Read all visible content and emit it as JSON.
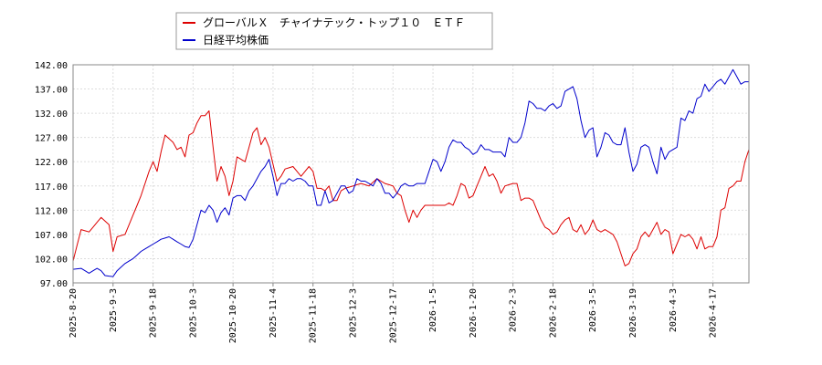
{
  "chart_data": {
    "type": "line",
    "grid": true,
    "legend_placement": "top-left",
    "ylim": [
      97.0,
      142.0
    ],
    "y_ticks": [
      "97.00",
      "102.00",
      "107.00",
      "112.00",
      "117.00",
      "122.00",
      "127.00",
      "132.00",
      "137.00",
      "142.00"
    ],
    "x_ticks": [
      "2025-8-20",
      "2025-9-3",
      "2025-9-18",
      "2025-10-3",
      "2025-10-20",
      "2025-11-4",
      "2025-11-18",
      "2025-12-3",
      "2025-12-17",
      "2026-1-5",
      "2026-1-20",
      "2026-2-3",
      "2026-2-18",
      "2026-3-5",
      "2026-3-19",
      "2026-4-3",
      "2026-4-17"
    ],
    "tick_index": [
      0,
      10,
      20,
      30,
      40,
      50,
      60,
      70,
      80,
      90,
      100,
      110,
      120,
      130,
      140,
      150,
      160
    ],
    "n_points": 170,
    "series": [
      {
        "name": "グローバルＸ　チャイナテック・トップ１０　ＥＴＦ",
        "color": "#dd0000",
        "anchors": [
          [
            0,
            101.5
          ],
          [
            2,
            108
          ],
          [
            4,
            107.5
          ],
          [
            7,
            110.5
          ],
          [
            9,
            109
          ],
          [
            10,
            103.5
          ],
          [
            11,
            106.5
          ],
          [
            13,
            107
          ],
          [
            14,
            109
          ],
          [
            17,
            115
          ],
          [
            19,
            120
          ],
          [
            20,
            122
          ],
          [
            21,
            120
          ],
          [
            22,
            124
          ],
          [
            23,
            127.5
          ],
          [
            25,
            126
          ],
          [
            26,
            124.5
          ],
          [
            27,
            125
          ],
          [
            28,
            123
          ],
          [
            29,
            127.5
          ],
          [
            30,
            128
          ],
          [
            31,
            130
          ],
          [
            32,
            131.5
          ],
          [
            33,
            131.5
          ],
          [
            34,
            132.5
          ],
          [
            35,
            125
          ],
          [
            36,
            118
          ],
          [
            37,
            121
          ],
          [
            38,
            119
          ],
          [
            39,
            115
          ],
          [
            40,
            118
          ],
          [
            41,
            123
          ],
          [
            43,
            122
          ],
          [
            45,
            128
          ],
          [
            46,
            129
          ],
          [
            47,
            125.5
          ],
          [
            48,
            127
          ],
          [
            49,
            125
          ],
          [
            50,
            121.5
          ],
          [
            51,
            118
          ],
          [
            52,
            119
          ],
          [
            53,
            120.5
          ],
          [
            55,
            121
          ],
          [
            57,
            119
          ],
          [
            59,
            121
          ],
          [
            60,
            120
          ],
          [
            61,
            116.5
          ],
          [
            62,
            116.5
          ],
          [
            63,
            116
          ],
          [
            64,
            117
          ],
          [
            65,
            114
          ],
          [
            66,
            114
          ],
          [
            67,
            116
          ],
          [
            68,
            116.5
          ],
          [
            70,
            117
          ],
          [
            72,
            117.5
          ],
          [
            74,
            117
          ],
          [
            76,
            118.5
          ],
          [
            78,
            117.5
          ],
          [
            80,
            117
          ],
          [
            81,
            115.5
          ],
          [
            82,
            115
          ],
          [
            83,
            112
          ],
          [
            84,
            109.5
          ],
          [
            85,
            112
          ],
          [
            86,
            110.5
          ],
          [
            87,
            112
          ],
          [
            88,
            113
          ],
          [
            90,
            113
          ],
          [
            92,
            113
          ],
          [
            93,
            113
          ],
          [
            94,
            113.5
          ],
          [
            95,
            113
          ],
          [
            96,
            115
          ],
          [
            97,
            117.5
          ],
          [
            98,
            117
          ],
          [
            99,
            114.5
          ],
          [
            100,
            115
          ],
          [
            101,
            117
          ],
          [
            102,
            119
          ],
          [
            103,
            121
          ],
          [
            104,
            119
          ],
          [
            105,
            119.5
          ],
          [
            106,
            118
          ],
          [
            107,
            115.5
          ],
          [
            108,
            117
          ],
          [
            110,
            117.5
          ],
          [
            111,
            117.5
          ],
          [
            112,
            114
          ],
          [
            113,
            114.5
          ],
          [
            114,
            114.5
          ],
          [
            115,
            114
          ],
          [
            116,
            112
          ],
          [
            117,
            110
          ],
          [
            118,
            108.5
          ],
          [
            119,
            108
          ],
          [
            120,
            107
          ],
          [
            121,
            107.5
          ],
          [
            122,
            109
          ],
          [
            123,
            110
          ],
          [
            124,
            110.5
          ],
          [
            125,
            108
          ],
          [
            126,
            107.5
          ],
          [
            127,
            109
          ],
          [
            128,
            107
          ],
          [
            129,
            108
          ],
          [
            130,
            110
          ],
          [
            131,
            108
          ],
          [
            132,
            107.5
          ],
          [
            133,
            108
          ],
          [
            134,
            107.5
          ],
          [
            135,
            107
          ],
          [
            136,
            105.5
          ],
          [
            137,
            103
          ],
          [
            138,
            100.5
          ],
          [
            139,
            101
          ],
          [
            140,
            103
          ],
          [
            141,
            104
          ],
          [
            142,
            106.5
          ],
          [
            143,
            107.5
          ],
          [
            144,
            106.5
          ],
          [
            145,
            108
          ],
          [
            146,
            109.5
          ],
          [
            147,
            107
          ],
          [
            148,
            108
          ],
          [
            149,
            107.5
          ],
          [
            150,
            103
          ],
          [
            151,
            105
          ],
          [
            152,
            107
          ],
          [
            153,
            106.5
          ],
          [
            154,
            107
          ],
          [
            155,
            106
          ],
          [
            156,
            104
          ],
          [
            157,
            106.5
          ],
          [
            158,
            104
          ],
          [
            159,
            104.5
          ],
          [
            160,
            104.5
          ],
          [
            161,
            106.5
          ],
          [
            162,
            112
          ],
          [
            163,
            112.5
          ],
          [
            164,
            116.5
          ],
          [
            165,
            117
          ],
          [
            166,
            118
          ],
          [
            167,
            118
          ],
          [
            168,
            122
          ],
          [
            169,
            124.5
          ]
        ]
      },
      {
        "name": "日経平均株価",
        "color": "#0000cc",
        "anchors": [
          [
            0,
            99.8
          ],
          [
            2,
            100
          ],
          [
            4,
            99
          ],
          [
            6,
            100
          ],
          [
            7,
            99.5
          ],
          [
            8,
            98.5
          ],
          [
            10,
            98.3
          ],
          [
            11,
            99.5
          ],
          [
            13,
            101
          ],
          [
            14,
            101.5
          ],
          [
            15,
            102
          ],
          [
            17,
            103.5
          ],
          [
            19,
            104.5
          ],
          [
            20,
            105
          ],
          [
            22,
            106
          ],
          [
            24,
            106.5
          ],
          [
            26,
            105.5
          ],
          [
            28,
            104.5
          ],
          [
            29,
            104.3
          ],
          [
            30,
            106
          ],
          [
            31,
            109
          ],
          [
            32,
            112
          ],
          [
            33,
            111.5
          ],
          [
            34,
            113
          ],
          [
            35,
            112
          ],
          [
            36,
            109.5
          ],
          [
            37,
            111.5
          ],
          [
            38,
            112.5
          ],
          [
            39,
            111
          ],
          [
            40,
            114.5
          ],
          [
            41,
            115
          ],
          [
            42,
            115
          ],
          [
            43,
            114
          ],
          [
            44,
            116
          ],
          [
            45,
            117
          ],
          [
            46,
            118.5
          ],
          [
            47,
            120
          ],
          [
            48,
            121
          ],
          [
            49,
            122.5
          ],
          [
            50,
            119
          ],
          [
            51,
            115
          ],
          [
            52,
            117.5
          ],
          [
            53,
            117.5
          ],
          [
            54,
            118.5
          ],
          [
            55,
            118
          ],
          [
            56,
            118.5
          ],
          [
            57,
            118.5
          ],
          [
            58,
            118
          ],
          [
            59,
            117
          ],
          [
            60,
            117
          ],
          [
            61,
            113
          ],
          [
            62,
            113
          ],
          [
            63,
            116
          ],
          [
            64,
            113.5
          ],
          [
            65,
            114
          ],
          [
            66,
            115.5
          ],
          [
            67,
            117
          ],
          [
            68,
            117
          ],
          [
            69,
            115.5
          ],
          [
            70,
            116
          ],
          [
            71,
            118.5
          ],
          [
            72,
            118
          ],
          [
            73,
            118
          ],
          [
            74,
            117.5
          ],
          [
            75,
            117
          ],
          [
            76,
            118.5
          ],
          [
            77,
            117.5
          ],
          [
            78,
            115.5
          ],
          [
            79,
            115.5
          ],
          [
            80,
            114.5
          ],
          [
            81,
            115.5
          ],
          [
            82,
            117
          ],
          [
            83,
            117.5
          ],
          [
            84,
            117
          ],
          [
            85,
            117
          ],
          [
            86,
            117.5
          ],
          [
            87,
            117.5
          ],
          [
            88,
            117.5
          ],
          [
            89,
            120
          ],
          [
            90,
            122.5
          ],
          [
            91,
            122
          ],
          [
            92,
            120
          ],
          [
            93,
            122
          ],
          [
            94,
            125
          ],
          [
            95,
            126.5
          ],
          [
            96,
            126
          ],
          [
            97,
            126
          ],
          [
            98,
            125
          ],
          [
            99,
            124.5
          ],
          [
            100,
            123.5
          ],
          [
            101,
            124
          ],
          [
            102,
            125.5
          ],
          [
            103,
            124.5
          ],
          [
            104,
            124.5
          ],
          [
            105,
            124
          ],
          [
            106,
            124
          ],
          [
            107,
            124
          ],
          [
            108,
            123
          ],
          [
            109,
            127
          ],
          [
            110,
            126
          ],
          [
            111,
            126
          ],
          [
            112,
            127
          ],
          [
            113,
            130
          ],
          [
            114,
            134.5
          ],
          [
            115,
            134
          ],
          [
            116,
            133
          ],
          [
            117,
            133
          ],
          [
            118,
            132.5
          ],
          [
            119,
            133.5
          ],
          [
            120,
            134
          ],
          [
            121,
            133
          ],
          [
            122,
            133.5
          ],
          [
            123,
            136.5
          ],
          [
            124,
            137
          ],
          [
            125,
            137.5
          ],
          [
            126,
            135
          ],
          [
            127,
            130.5
          ],
          [
            128,
            127
          ],
          [
            129,
            128.5
          ],
          [
            130,
            129
          ],
          [
            131,
            123
          ],
          [
            132,
            125
          ],
          [
            133,
            128
          ],
          [
            134,
            127.5
          ],
          [
            135,
            126
          ],
          [
            136,
            125.5
          ],
          [
            137,
            125.5
          ],
          [
            138,
            129
          ],
          [
            139,
            124
          ],
          [
            140,
            120
          ],
          [
            141,
            121.5
          ],
          [
            142,
            125
          ],
          [
            143,
            125.5
          ],
          [
            144,
            125
          ],
          [
            145,
            122
          ],
          [
            146,
            119.5
          ],
          [
            147,
            125
          ],
          [
            148,
            122.5
          ],
          [
            149,
            124
          ],
          [
            150,
            124.5
          ],
          [
            151,
            125
          ],
          [
            152,
            131
          ],
          [
            153,
            130.5
          ],
          [
            154,
            132.5
          ],
          [
            155,
            132
          ],
          [
            156,
            135
          ],
          [
            157,
            135.5
          ],
          [
            158,
            138
          ],
          [
            159,
            136.5
          ],
          [
            160,
            137.5
          ],
          [
            161,
            138.5
          ],
          [
            162,
            139
          ],
          [
            163,
            138
          ],
          [
            164,
            139.5
          ],
          [
            165,
            141
          ],
          [
            166,
            139.5
          ],
          [
            167,
            138
          ],
          [
            168,
            138.5
          ],
          [
            169,
            138.5
          ]
        ]
      }
    ]
  }
}
